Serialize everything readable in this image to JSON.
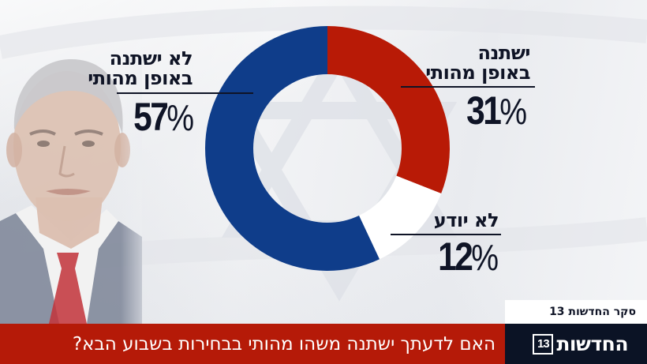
{
  "chart_data": {
    "type": "pie",
    "subtype": "donut",
    "title": "האם לדעתך ישתנה משהו מהותי בבחירות בשבוע הבא?",
    "categories": [
      "ישתנה באופן מהותי",
      "לא יודע",
      "לא ישתנה באופן מהותי"
    ],
    "values": [
      31,
      12,
      57
    ],
    "unit": "%",
    "colors": [
      "#b81a06",
      "#ffffff",
      "#0f3d8a"
    ],
    "start_angle_deg": 0,
    "direction": "clockwise",
    "center": [
      415,
      188
    ],
    "outer_radius": 155,
    "inner_radius": 94,
    "legend": "none (direct labels)"
  },
  "labels": {
    "yes": {
      "line1": "ישתנה",
      "line2": "באופן מהותי",
      "value": "31",
      "sign": "%"
    },
    "dontknow": {
      "line1": "לא יודע",
      "value": "12",
      "sign": "%"
    },
    "no": {
      "line1": "לא ישתנה",
      "line2": "באופן מהותי",
      "value": "57",
      "sign": "%"
    }
  },
  "footer": {
    "survey_label": "סקר החדשות 13",
    "question": "האם לדעתך ישתנה משהו מהותי בבחירות בשבוע הבא?",
    "brand_name": "החדשות",
    "brand_logo_number": "13"
  },
  "colors": {
    "accent_red": "#b51a08",
    "brand_navy": "#0b1325",
    "text_dark": "#0f1426",
    "blue": "#0f3d8a"
  }
}
